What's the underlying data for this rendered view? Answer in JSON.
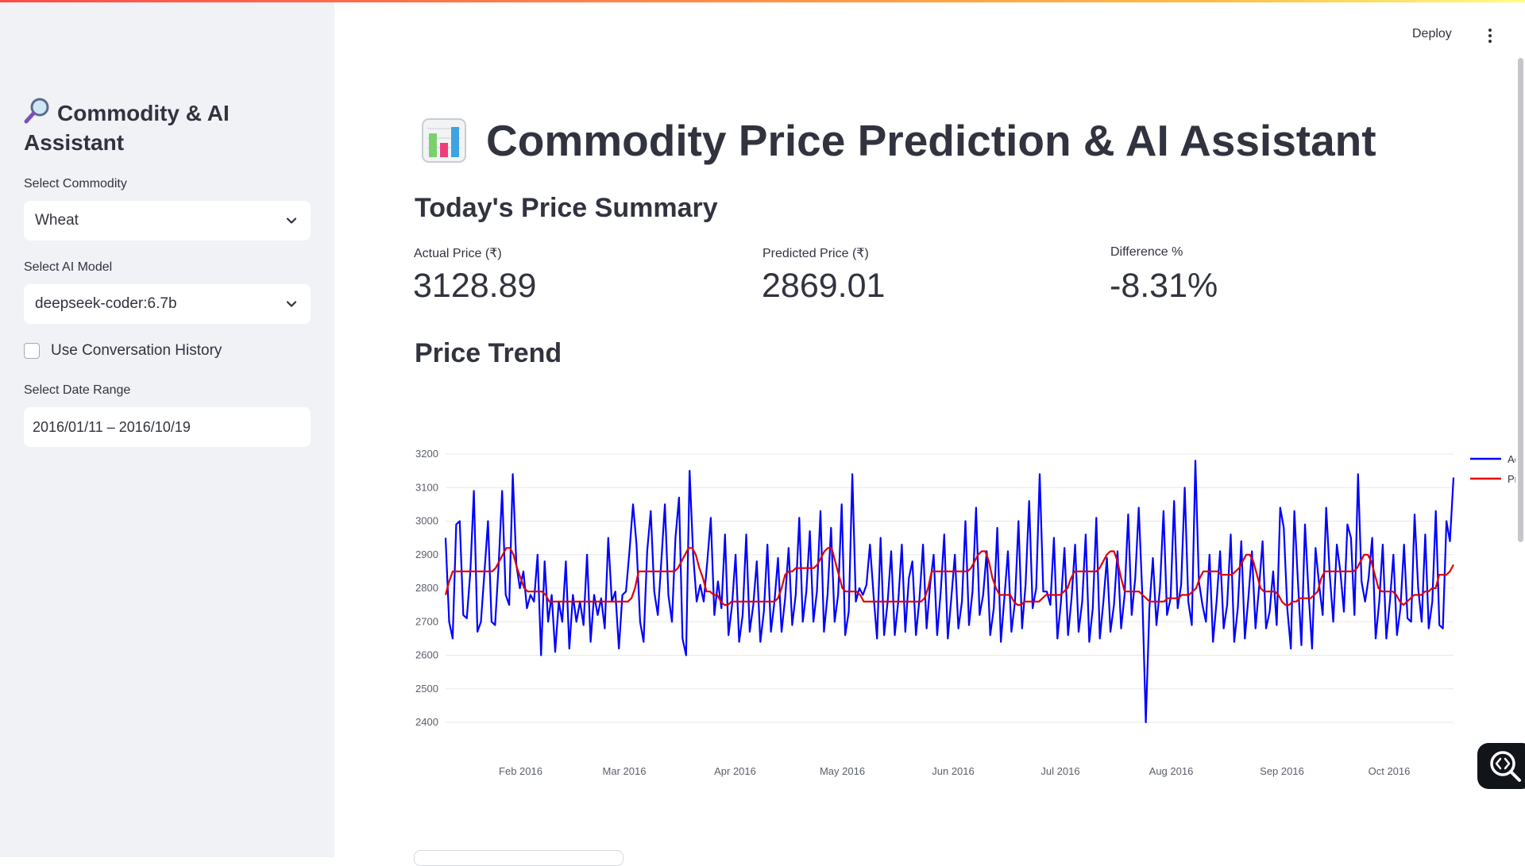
{
  "sidebar": {
    "title": "Commodity & AI Assistant",
    "commodity_label": "Select Commodity",
    "commodity_value": "Wheat",
    "model_label": "Select AI Model",
    "model_value": "deepseek-coder:6.7b",
    "history_label": "Use Conversation History",
    "history_checked": false,
    "date_label": "Select Date Range",
    "date_value": "2016/01/11 – 2016/10/19"
  },
  "header": {
    "deploy_label": "Deploy",
    "menu_icon": "more-vertical-icon"
  },
  "main": {
    "title": "Commodity Price Prediction & AI Assistant",
    "summary_heading": "Today's Price Summary",
    "metrics": [
      {
        "label": "Actual Price (₹)",
        "value": "3128.89"
      },
      {
        "label": "Predicted Price (₹)",
        "value": "2869.01"
      },
      {
        "label": "Difference %",
        "value": "-8.31%"
      }
    ],
    "trend_heading": "Price Trend"
  },
  "colors": {
    "sidebar_bg": "#f0f2f6",
    "actual_line": "#0000ff",
    "predicted_line": "#e00000",
    "text": "#31333f"
  },
  "chart_data": {
    "type": "line",
    "x_range": [
      "2016-01-11",
      "2016-10-19"
    ],
    "ylim": [
      2400,
      3200
    ],
    "y_ticks": [
      3200,
      3100,
      3000,
      2900,
      2800,
      2700,
      2600,
      2500,
      2400
    ],
    "x_ticks": [
      "Feb 2016",
      "Mar 2016",
      "Apr 2016",
      "May 2016",
      "Jun 2016",
      "Jul 2016",
      "Aug 2016",
      "Sep 2016",
      "Oct 2016"
    ],
    "legend_position": "right",
    "grid": true,
    "series": [
      {
        "name": "Actual Price",
        "color": "#0000ff",
        "values": [
          2950,
          2700,
          2650,
          2990,
          3000,
          2720,
          2710,
          2850,
          3090,
          2670,
          2700,
          2850,
          3000,
          2700,
          2690,
          2870,
          3090,
          2780,
          2750,
          3140,
          2870,
          2800,
          2850,
          2740,
          2780,
          2760,
          2900,
          2600,
          2880,
          2700,
          2780,
          2610,
          2760,
          2700,
          2880,
          2620,
          2780,
          2700,
          2760,
          2690,
          2900,
          2640,
          2780,
          2720,
          2770,
          2680,
          2950,
          2760,
          2790,
          2620,
          2780,
          2790,
          2910,
          3050,
          2930,
          2700,
          2640,
          2910,
          3030,
          2790,
          2720,
          2880,
          3050,
          2780,
          2700,
          2950,
          3070,
          2650,
          2600,
          3150,
          2900,
          2760,
          2810,
          2760,
          2880,
          3010,
          2720,
          2820,
          2740,
          2960,
          2660,
          2750,
          2900,
          2640,
          2720,
          2960,
          2670,
          2750,
          2880,
          2640,
          2730,
          2930,
          2670,
          2760,
          2890,
          2670,
          2770,
          2920,
          2690,
          2780,
          3010,
          2700,
          2790,
          2970,
          2700,
          2790,
          3030,
          2670,
          2780,
          2980,
          2700,
          2780,
          3050,
          2660,
          2730,
          3140,
          2760,
          2800,
          2780,
          2810,
          2930,
          2780,
          2650,
          2950,
          2660,
          2760,
          2910,
          2660,
          2760,
          2930,
          2670,
          2830,
          2880,
          2660,
          2770,
          2930,
          2680,
          2810,
          2900,
          2660,
          2790,
          2960,
          2650,
          2770,
          2900,
          2680,
          2760,
          3000,
          2690,
          2790,
          3040,
          2720,
          2780,
          2910,
          2660,
          2740,
          2980,
          2640,
          2770,
          2910,
          2670,
          2760,
          3000,
          2680,
          2810,
          3060,
          2740,
          2800,
          3140,
          2790,
          2790,
          2750,
          2950,
          2650,
          2760,
          2920,
          2660,
          2770,
          2930,
          2670,
          2760,
          2960,
          2640,
          2740,
          3010,
          2650,
          2760,
          2890,
          2670,
          2750,
          2910,
          2680,
          2780,
          3020,
          2720,
          2830,
          3040,
          2780,
          2400,
          2740,
          2890,
          2690,
          2800,
          3030,
          2720,
          2770,
          3060,
          2740,
          2810,
          3100,
          2760,
          2690,
          3180,
          2820,
          2750,
          2700,
          2900,
          2640,
          2760,
          2910,
          2680,
          2750,
          2960,
          2640,
          2740,
          2940,
          2650,
          2770,
          2910,
          2680,
          2800,
          2940,
          2680,
          2730,
          2850,
          2690,
          3040,
          2980,
          2740,
          2620,
          3030,
          2820,
          2630,
          2990,
          2790,
          2620,
          2920,
          2810,
          2720,
          3040,
          2840,
          2700,
          2930,
          2850,
          2730,
          2990,
          2950,
          2720,
          3140,
          2820,
          2760,
          2830,
          2950,
          2650,
          2760,
          2930,
          2650,
          2760,
          2900,
          2660,
          2740,
          2930,
          2710,
          2700,
          3020,
          2800,
          2700,
          2960,
          2680,
          2760,
          3030,
          2690,
          2680,
          3000,
          2940,
          3130
        ]
      },
      {
        "name": "Predicted Price",
        "color": "#e00000",
        "values": [
          2780,
          2820,
          2850,
          2850,
          2850,
          2850,
          2850,
          2850,
          2850,
          2850,
          2850,
          2850,
          2850,
          2850,
          2860,
          2880,
          2900,
          2920,
          2920,
          2900,
          2860,
          2830,
          2800,
          2790,
          2790,
          2790,
          2790,
          2790,
          2780,
          2760,
          2760,
          2760,
          2760,
          2760,
          2760,
          2760,
          2760,
          2760,
          2760,
          2760,
          2760,
          2760,
          2760,
          2760,
          2760,
          2760,
          2760,
          2760,
          2760,
          2760,
          2760,
          2760,
          2770,
          2800,
          2850,
          2850,
          2850,
          2850,
          2850,
          2850,
          2850,
          2850,
          2850,
          2850,
          2850,
          2860,
          2880,
          2900,
          2920,
          2920,
          2900,
          2860,
          2830,
          2790,
          2790,
          2780,
          2780,
          2760,
          2750,
          2750,
          2760,
          2760,
          2760,
          2760,
          2760,
          2760,
          2760,
          2760,
          2760,
          2760,
          2760,
          2760,
          2760,
          2770,
          2800,
          2840,
          2850,
          2850,
          2860,
          2860,
          2860,
          2860,
          2860,
          2860,
          2870,
          2890,
          2910,
          2920,
          2920,
          2880,
          2840,
          2800,
          2790,
          2790,
          2790,
          2790,
          2780,
          2760,
          2760,
          2760,
          2760,
          2760,
          2760,
          2760,
          2760,
          2760,
          2760,
          2760,
          2760,
          2760,
          2760,
          2760,
          2760,
          2760,
          2770,
          2800,
          2850,
          2850,
          2850,
          2850,
          2850,
          2850,
          2850,
          2850,
          2850,
          2850,
          2850,
          2860,
          2880,
          2900,
          2910,
          2910,
          2880,
          2830,
          2800,
          2780,
          2780,
          2780,
          2780,
          2760,
          2750,
          2750,
          2760,
          2760,
          2760,
          2760,
          2760,
          2770,
          2780,
          2780,
          2780,
          2780,
          2780,
          2790,
          2800,
          2830,
          2850,
          2850,
          2850,
          2850,
          2850,
          2850,
          2850,
          2860,
          2880,
          2900,
          2910,
          2910,
          2880,
          2830,
          2790,
          2790,
          2790,
          2790,
          2790,
          2780,
          2770,
          2760,
          2760,
          2760,
          2760,
          2760,
          2770,
          2770,
          2770,
          2770,
          2780,
          2780,
          2780,
          2790,
          2800,
          2830,
          2850,
          2850,
          2850,
          2850,
          2850,
          2840,
          2840,
          2840,
          2840,
          2850,
          2860,
          2880,
          2900,
          2900,
          2880,
          2840,
          2800,
          2790,
          2790,
          2790,
          2790,
          2780,
          2760,
          2750,
          2750,
          2760,
          2760,
          2770,
          2770,
          2770,
          2770,
          2780,
          2790,
          2830,
          2850,
          2850,
          2850,
          2850,
          2850,
          2850,
          2850,
          2850,
          2850,
          2860,
          2880,
          2900,
          2900,
          2880,
          2840,
          2800,
          2790,
          2790,
          2790,
          2790,
          2780,
          2760,
          2750,
          2760,
          2770,
          2780,
          2780,
          2780,
          2790,
          2790,
          2800,
          2800,
          2840,
          2840,
          2840,
          2850,
          2870
        ]
      }
    ]
  }
}
